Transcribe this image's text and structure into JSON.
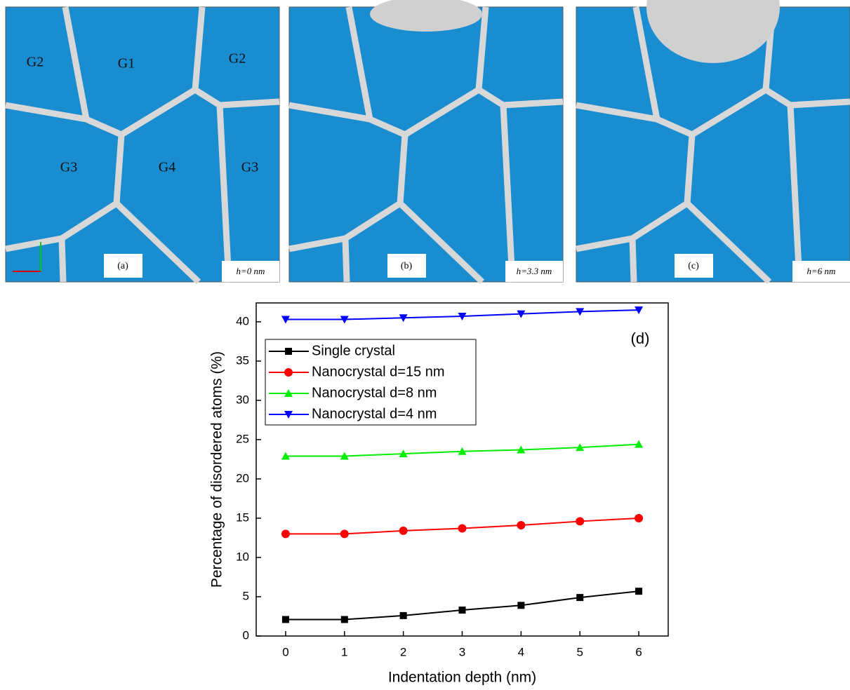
{
  "panels": [
    {
      "label": "(a)",
      "depth": "h=0 nm",
      "grains": [
        "G2",
        "G1",
        "G2",
        "G3",
        "G4",
        "G3"
      ]
    },
    {
      "label": "(b)",
      "depth": "h=3.3 nm"
    },
    {
      "label": "(c)",
      "depth": "h=6 nm"
    }
  ],
  "chart_data": {
    "type": "line",
    "annotation": "(d)",
    "x_label": "Indentation depth (nm)",
    "y_label": "Percentage of disordered atoms (%)",
    "x": [
      0,
      1,
      2,
      3,
      4,
      5,
      6
    ],
    "xlim": [
      -0.5,
      6.5
    ],
    "xticks": [
      0,
      1,
      2,
      3,
      4,
      5,
      6
    ],
    "ylim": [
      0,
      42.4
    ],
    "yticks": [
      0,
      5,
      10,
      15,
      20,
      25,
      30,
      35,
      40
    ],
    "legend": "upper left",
    "series": [
      {
        "name": "Single crystal",
        "color": "#000000",
        "marker": "square",
        "values": [
          2.1,
          2.1,
          2.6,
          3.3,
          3.9,
          4.9,
          5.7
        ]
      },
      {
        "name": "Nanocrystal d=15 nm",
        "color": "#ff0000",
        "marker": "circle",
        "values": [
          13.0,
          13.0,
          13.4,
          13.7,
          14.1,
          14.6,
          15.0
        ]
      },
      {
        "name": "Nanocrystal d=8 nm",
        "color": "#00ee00",
        "marker": "triangle-up",
        "values": [
          22.9,
          22.9,
          23.2,
          23.5,
          23.7,
          24.0,
          24.4
        ]
      },
      {
        "name": "Nanocrystal d=4 nm",
        "color": "#0000ff",
        "marker": "triangle-down",
        "values": [
          40.3,
          40.3,
          40.5,
          40.7,
          41.0,
          41.3,
          41.5
        ]
      }
    ]
  }
}
